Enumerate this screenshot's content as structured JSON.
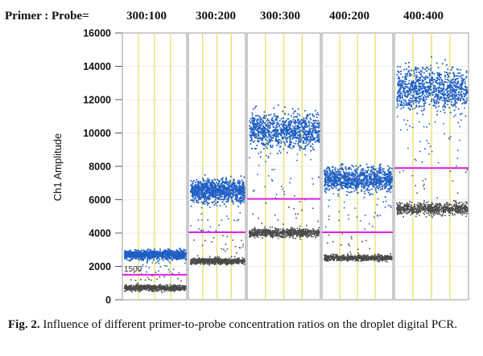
{
  "chart_data": {
    "type": "scatter",
    "header_label": "Primer : Probe=",
    "ylabel": "Ch1 Amplitude",
    "ylim": [
      0,
      16000
    ],
    "yticks": [
      0,
      2000,
      4000,
      6000,
      8000,
      10000,
      12000,
      14000,
      16000
    ],
    "threshold_label": "1500",
    "panels": [
      {
        "label": "300:100",
        "negative_center": 750,
        "positive_center": 2750,
        "threshold": 1500
      },
      {
        "label": "300:200",
        "negative_center": 2350,
        "positive_center": 6600,
        "threshold": 4050
      },
      {
        "label": "300:300",
        "negative_center": 4050,
        "positive_center": 10200,
        "threshold": 6050
      },
      {
        "label": "400:200",
        "negative_center": 2550,
        "positive_center": 7300,
        "threshold": 4050
      },
      {
        "label": "400:400",
        "negative_center": 5500,
        "positive_center": 12700,
        "threshold": 7900
      }
    ],
    "colors": {
      "positive": "#1f5fc4",
      "negative": "#4a4a4a",
      "threshold": "#e020e0",
      "well_line": "#e8e070"
    }
  },
  "caption": {
    "label": "Fig. 2.",
    "text": "Influence of different primer-to-probe concentration ratios on the droplet digital PCR."
  }
}
